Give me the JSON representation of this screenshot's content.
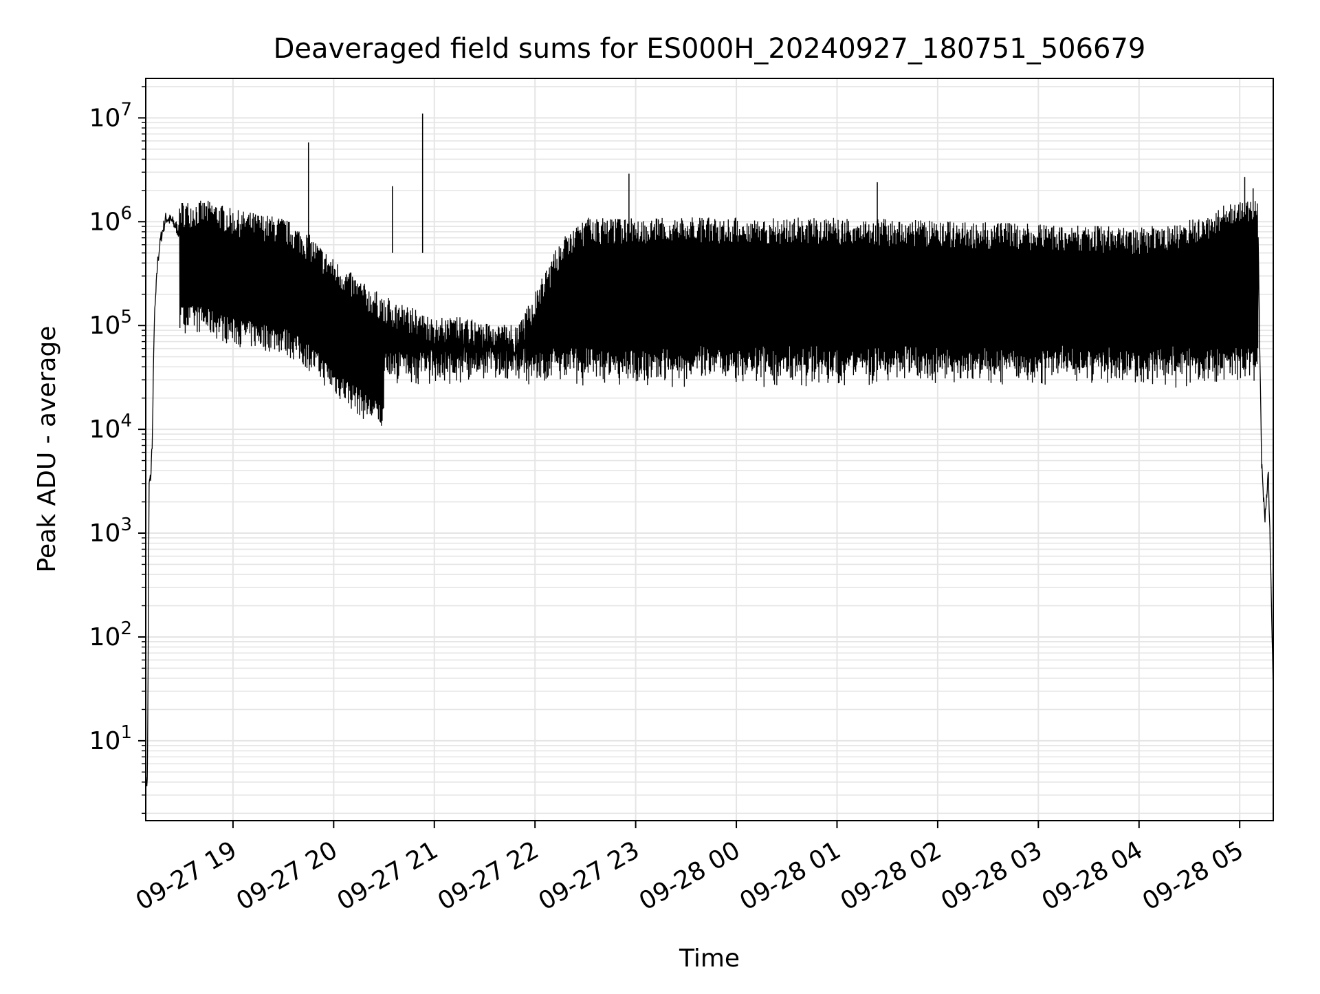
{
  "chart_data": {
    "type": "line",
    "title": "Deaveraged field sums for ES000H_20240927_180751_506679",
    "xlabel": "Time",
    "ylabel": "Peak ADU - average",
    "yscale": "log",
    "xlim": [
      "2024-09-27 18:08",
      "2024-09-28 05:20"
    ],
    "ylim": [
      1.7,
      24000000
    ],
    "grid": true,
    "line_color": "#000000",
    "grid_color": "#e5e5e5",
    "x_ticks": [
      "09-27 19",
      "09-27 20",
      "09-27 21",
      "09-27 22",
      "09-27 23",
      "09-28 00",
      "09-28 01",
      "09-28 02",
      "09-28 03",
      "09-28 04",
      "09-28 05"
    ],
    "y_ticks": [
      {
        "base": "10",
        "exp": "1"
      },
      {
        "base": "10",
        "exp": "2"
      },
      {
        "base": "10",
        "exp": "3"
      },
      {
        "base": "10",
        "exp": "4"
      },
      {
        "base": "10",
        "exp": "5"
      },
      {
        "base": "10",
        "exp": "6"
      },
      {
        "base": "10",
        "exp": "7"
      }
    ],
    "series": [
      {
        "x": [
          "2024-09-27 18:08",
          "2024-09-27 18:09",
          "2024-09-27 18:10",
          "2024-09-27 18:11",
          "2024-09-27 18:12",
          "2024-09-27 18:13",
          "2024-09-27 18:15",
          "2024-09-27 18:17",
          "2024-09-27 18:20",
          "2024-09-27 18:24",
          "2024-09-27 18:28",
          "2024-09-27 18:33",
          "2024-09-27 18:40",
          "2024-09-27 18:50",
          "2024-09-27 19:00",
          "2024-09-27 19:15",
          "2024-09-27 19:30",
          "2024-09-27 19:45",
          "2024-09-27 20:00",
          "2024-09-27 20:20",
          "2024-09-27 20:35",
          "2024-09-27 20:50",
          "2024-09-27 21:00",
          "2024-09-27 21:15",
          "2024-09-27 21:30",
          "2024-09-27 21:50",
          "2024-09-27 22:15",
          "2024-09-27 22:30",
          "2024-09-28 01:00",
          "2024-09-28 04:00",
          "2024-09-28 04:40",
          "2024-09-28 05:00",
          "2024-09-28 05:08",
          "2024-09-28 05:11",
          "2024-09-28 05:13",
          "2024-09-28 05:15",
          "2024-09-28 05:17",
          "2024-09-28 05:18",
          "2024-09-28 05:20"
        ],
        "y": [
          4,
          4,
          3000,
          3500,
          9000,
          100000,
          400000,
          700000,
          1100000,
          1000000,
          800000,
          800000,
          800000,
          700000,
          600000,
          550000,
          500000,
          350000,
          200000,
          110000,
          80000,
          65000,
          55000,
          55000,
          50000,
          45000,
          300000,
          500000,
          500000,
          400000,
          500000,
          1000000,
          1100000,
          700000,
          5000,
          1300,
          4000,
          1000,
          30
        ]
      }
    ],
    "spikes": [
      {
        "x": "2024-09-27 19:45",
        "y": 5800000
      },
      {
        "x": "2024-09-27 20:53",
        "y": 11000000
      },
      {
        "x": "2024-09-27 20:35",
        "y": 2200000
      },
      {
        "x": "2024-09-27 22:56",
        "y": 2900000
      },
      {
        "x": "2024-09-28 01:24",
        "y": 2400000
      },
      {
        "x": "2024-09-28 05:03",
        "y": 2700000
      },
      {
        "x": "2024-09-28 05:08",
        "y": 2100000
      }
    ]
  }
}
